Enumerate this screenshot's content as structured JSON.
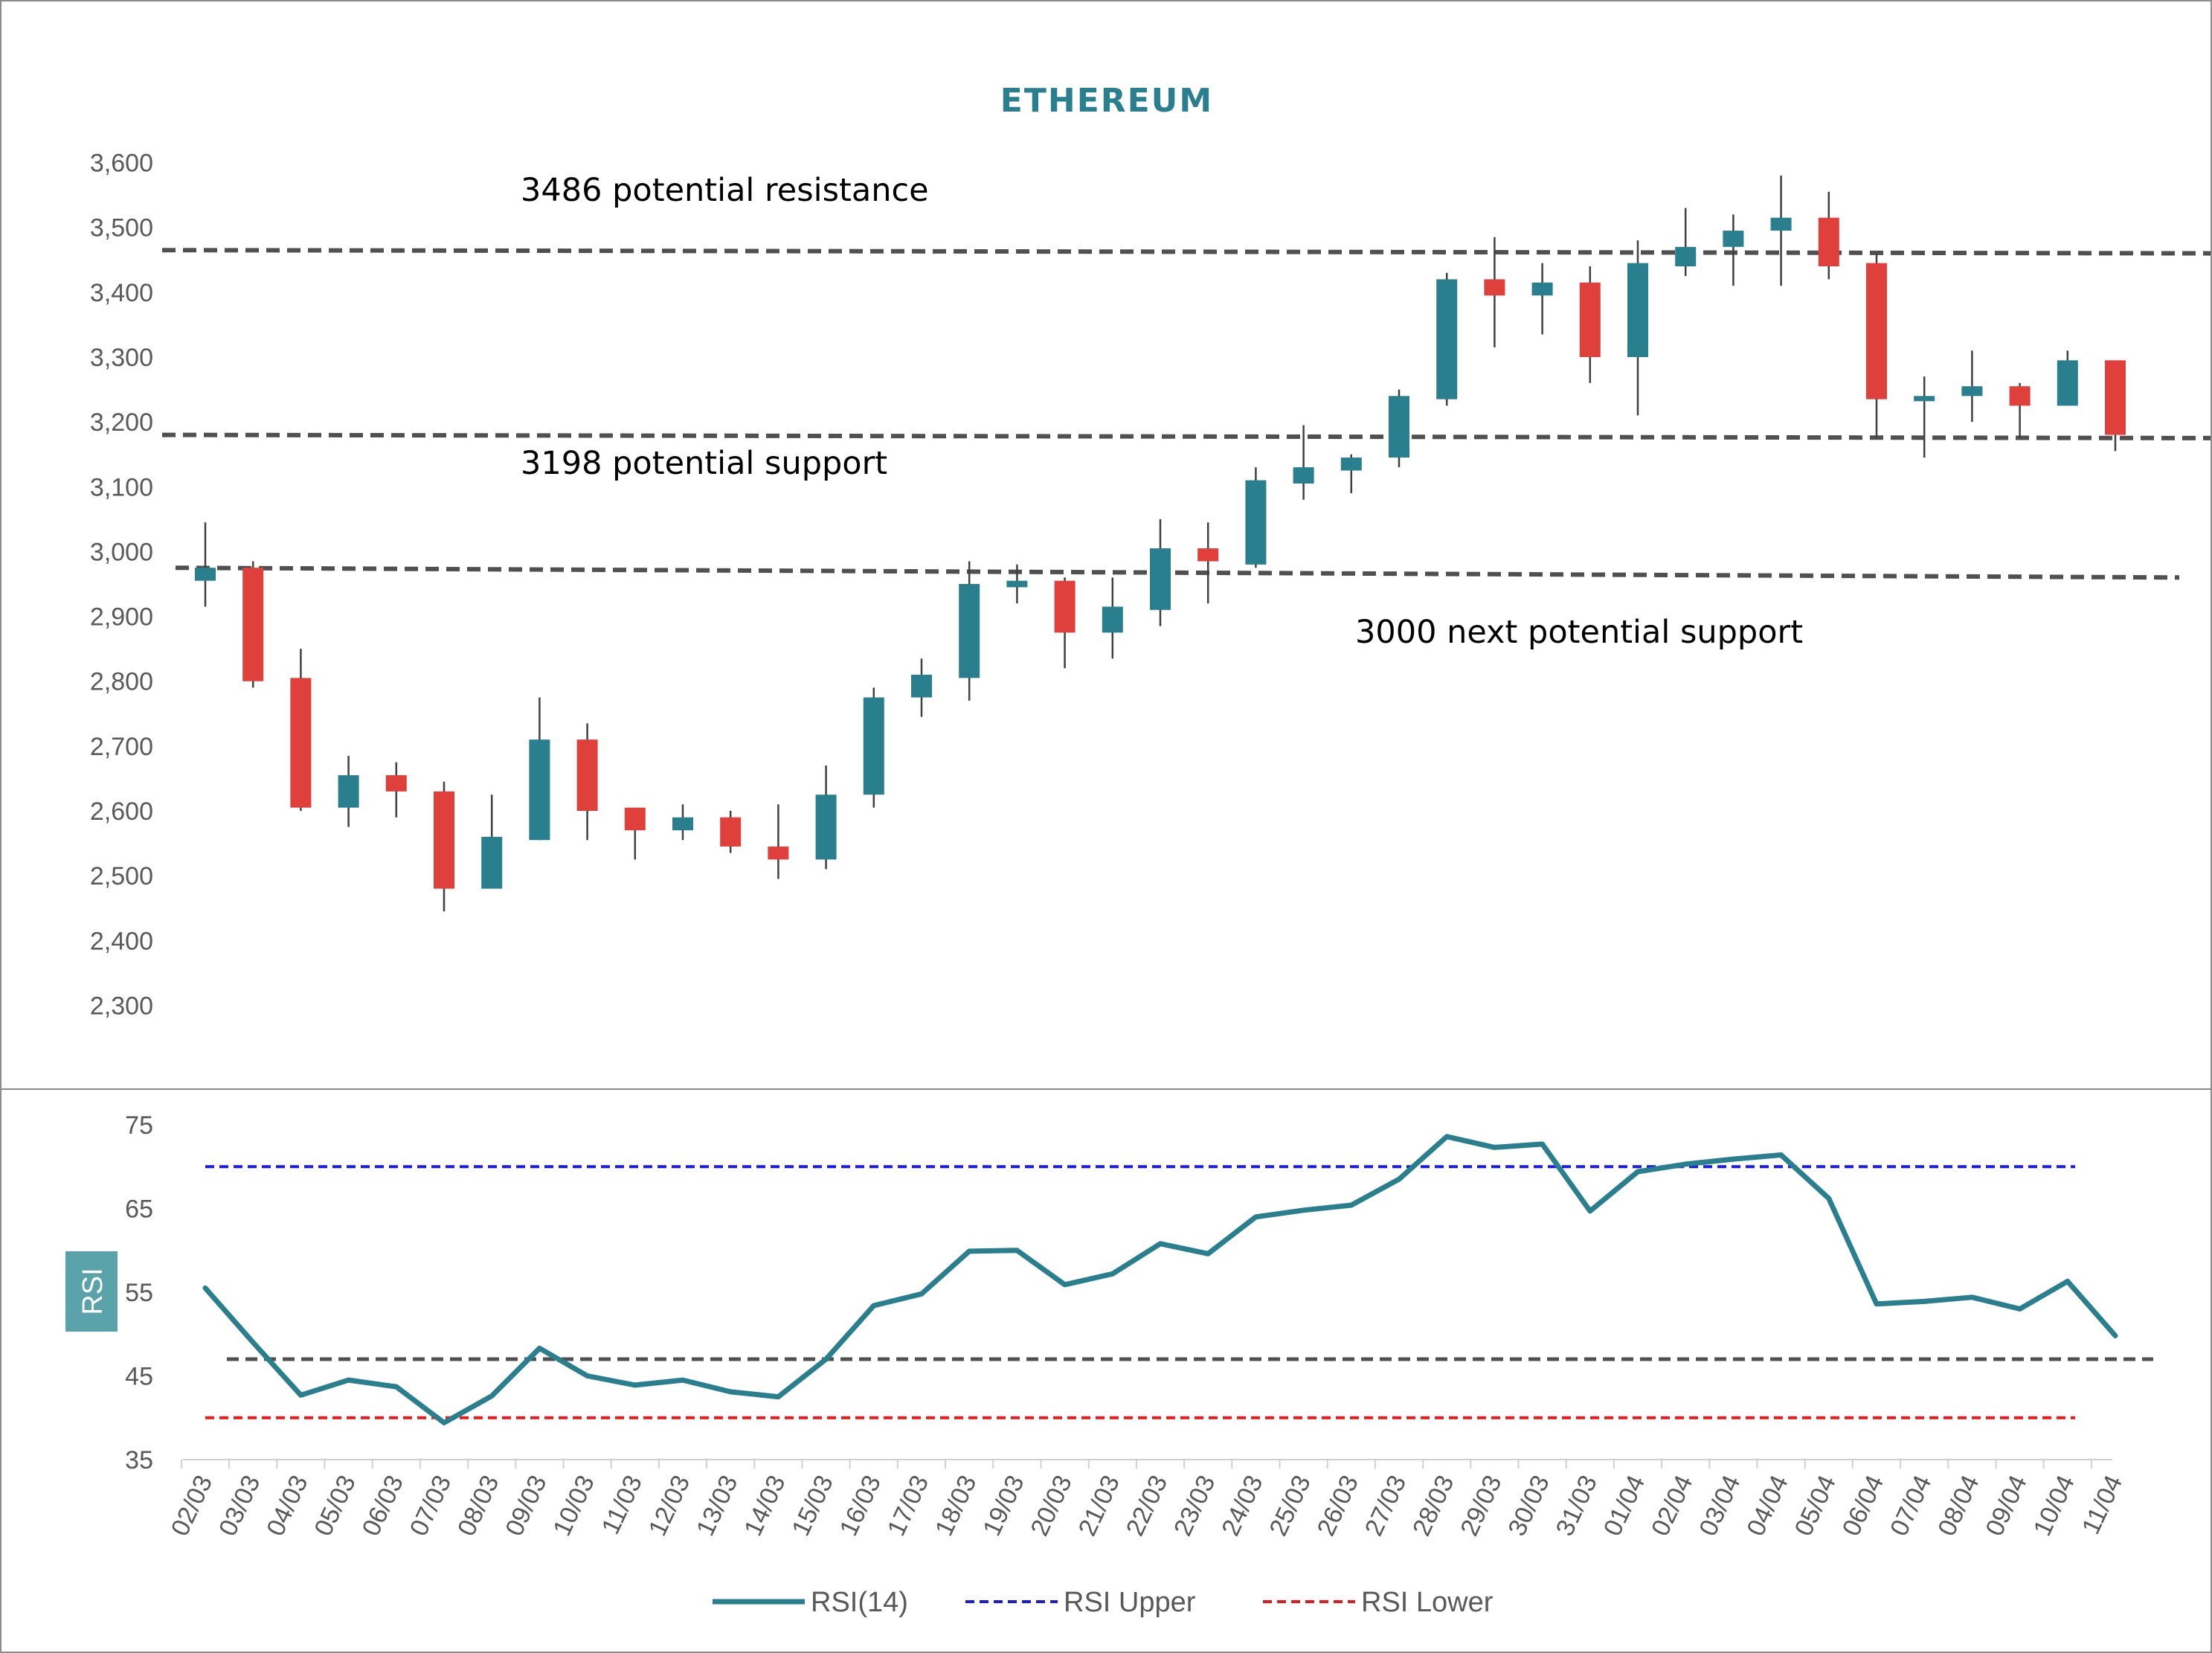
{
  "colors": {
    "bull": "#2A7F8E",
    "bear": "#E0403C",
    "wick": "#404040",
    "level": "#505050",
    "rsi_line": "#2A7F8E",
    "rsi_upper": "#1A1AE6",
    "rsi_lower": "#E61A1A",
    "title": "#2A7F8E",
    "rsi_label_bg": "#5BA3AA"
  },
  "chart_data": [
    {
      "type": "candlestick",
      "title": "ETHEREUM",
      "ylim": [
        2250,
        3650
      ],
      "yticks": [
        "3,600",
        "3,500",
        "3,400",
        "3,300",
        "3,200",
        "3,100",
        "3,000",
        "2,900",
        "2,800",
        "2,700",
        "2,600",
        "2,500",
        "2,400",
        "2,300"
      ],
      "ytick_values": [
        3600,
        3500,
        3400,
        3300,
        3200,
        3100,
        3000,
        2900,
        2800,
        2700,
        2600,
        2500,
        2400,
        2300
      ],
      "categories": [
        "02/03",
        "03/03",
        "04/03",
        "05/03",
        "06/03",
        "07/03",
        "08/03",
        "09/03",
        "10/03",
        "11/03",
        "12/03",
        "13/03",
        "14/03",
        "15/03",
        "16/03",
        "17/03",
        "18/03",
        "19/03",
        "20/03",
        "21/03",
        "22/03",
        "23/03",
        "24/03",
        "25/03",
        "26/03",
        "27/03",
        "28/03",
        "29/03",
        "30/03",
        "31/03",
        "01/04",
        "02/04",
        "03/04",
        "04/04",
        "05/04",
        "06/04",
        "07/04",
        "08/04",
        "09/04",
        "10/04",
        "11/04"
      ],
      "ohlc": [
        [
          2955,
          3045,
          2915,
          2975
        ],
        [
          2975,
          2985,
          2790,
          2800
        ],
        [
          2805,
          2850,
          2600,
          2605
        ],
        [
          2605,
          2685,
          2575,
          2655
        ],
        [
          2655,
          2675,
          2590,
          2630
        ],
        [
          2630,
          2645,
          2445,
          2480
        ],
        [
          2480,
          2625,
          2480,
          2560
        ],
        [
          2555,
          2775,
          2555,
          2710
        ],
        [
          2710,
          2735,
          2555,
          2600
        ],
        [
          2605,
          2605,
          2525,
          2570
        ],
        [
          2570,
          2610,
          2555,
          2590
        ],
        [
          2590,
          2600,
          2535,
          2545
        ],
        [
          2545,
          2610,
          2495,
          2525
        ],
        [
          2525,
          2670,
          2510,
          2625
        ],
        [
          2625,
          2790,
          2605,
          2775
        ],
        [
          2775,
          2835,
          2745,
          2810
        ],
        [
          2805,
          2985,
          2770,
          2950
        ],
        [
          2945,
          2980,
          2920,
          2955
        ],
        [
          2955,
          2960,
          2820,
          2875
        ],
        [
          2875,
          2960,
          2835,
          2915
        ],
        [
          2910,
          3050,
          2885,
          3005
        ],
        [
          3005,
          3045,
          2920,
          2985
        ],
        [
          2980,
          3130,
          2975,
          3110
        ],
        [
          3105,
          3195,
          3080,
          3130
        ],
        [
          3125,
          3150,
          3090,
          3145
        ],
        [
          3145,
          3250,
          3130,
          3240
        ],
        [
          3235,
          3430,
          3225,
          3420
        ],
        [
          3420,
          3485,
          3315,
          3395
        ],
        [
          3395,
          3445,
          3335,
          3415
        ],
        [
          3415,
          3440,
          3260,
          3300
        ],
        [
          3300,
          3480,
          3210,
          3445
        ],
        [
          3440,
          3530,
          3425,
          3470
        ],
        [
          3470,
          3520,
          3410,
          3495
        ],
        [
          3495,
          3580,
          3410,
          3515
        ],
        [
          3515,
          3555,
          3420,
          3440
        ],
        [
          3445,
          3460,
          3175,
          3235
        ],
        [
          3235,
          3270,
          3145,
          3240
        ],
        [
          3240,
          3310,
          3200,
          3255
        ],
        [
          3255,
          3260,
          3175,
          3225
        ],
        [
          3225,
          3310,
          3225,
          3295
        ],
        [
          3295,
          3295,
          3155,
          3180
        ]
      ],
      "levels": [
        {
          "label": "3486 potential resistance",
          "start": 3465,
          "end": 3460
        },
        {
          "label": "3198 potential support",
          "start": 3180,
          "end": 3175
        },
        {
          "label": "3000 next potential support",
          "start": 2975,
          "end": 2960
        }
      ]
    },
    {
      "type": "line",
      "ylabel": "RSI",
      "ylim": [
        35,
        75
      ],
      "yticks": [
        "75",
        "65",
        "55",
        "45",
        "35"
      ],
      "ytick_values": [
        75,
        65,
        55,
        45,
        35
      ],
      "series": [
        {
          "name": "RSI(14)",
          "values": [
            55.5,
            49,
            42.7,
            44.5,
            43.7,
            39.4,
            42.6,
            48.3,
            45,
            43.9,
            44.5,
            43.1,
            42.5,
            47,
            53.4,
            54.8,
            59.9,
            60,
            55.9,
            57.2,
            60.8,
            59.6,
            64,
            64.8,
            65.4,
            68.5,
            73.6,
            72.3,
            72.7,
            64.7,
            69.4,
            70.3,
            70.9,
            71.4,
            66.2,
            53.6,
            53.9,
            54.4,
            53,
            56.3,
            49.8
          ]
        }
      ],
      "reference_lines": [
        {
          "name": "RSI Upper",
          "value": 70
        },
        {
          "name": "RSI Lower",
          "value": 40
        },
        {
          "name": "",
          "value": 47
        }
      ]
    }
  ],
  "legend": {
    "rsi": "RSI(14)",
    "upper": "RSI Upper",
    "lower": "RSI Lower"
  }
}
